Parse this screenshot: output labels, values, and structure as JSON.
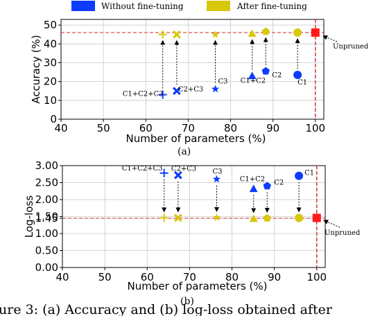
{
  "legend": [
    {
      "label": "Without fine-tuning",
      "color": "#0d3cff"
    },
    {
      "label": "After fine-tuning",
      "color": "#d9c70b"
    }
  ],
  "caption": "ure 3:  (a) Accuracy  and  (b) log-loss  obtained  after",
  "chart_data": [
    {
      "type": "scatter",
      "sublabel": "(a)",
      "xlabel": "Number of parameters (%)",
      "ylabel": "Accuracy (%)",
      "xlim": [
        40,
        102
      ],
      "ylim": [
        0,
        53
      ],
      "xticks": [
        "40",
        "50",
        "60",
        "70",
        "80",
        "90",
        "100"
      ],
      "yticks": [
        "0",
        "10",
        "20",
        "30",
        "40",
        "50"
      ],
      "grid": true,
      "reference_line_y": 46,
      "reference_line_x": 100,
      "unpruned": {
        "label": "Unpruned",
        "x": 100,
        "y": 46,
        "marker": "square"
      },
      "points": [
        {
          "label": "C1+C2+C3",
          "marker": "plus",
          "x": 64,
          "without": 13,
          "after": 45
        },
        {
          "label": "C2+C3",
          "marker": "x",
          "x": 67.3,
          "without": 15,
          "after": 45
        },
        {
          "label": "C3",
          "marker": "star",
          "x": 76.4,
          "without": 16,
          "after": 45
        },
        {
          "label": "C1+C2",
          "marker": "triangle",
          "x": 85.1,
          "without": 23,
          "after": 45.5
        },
        {
          "label": "C2",
          "marker": "pentagon",
          "x": 88.3,
          "without": 25.5,
          "after": 46.5
        },
        {
          "label": "C1",
          "marker": "circle",
          "x": 95.8,
          "without": 23.5,
          "after": 46
        }
      ]
    },
    {
      "type": "scatter",
      "sublabel": "(b)",
      "xlabel": "Number of parameters (%)",
      "ylabel": "Log-loss",
      "xlim": [
        40,
        102
      ],
      "ylim": [
        0,
        3.0
      ],
      "xticks": [
        "40",
        "50",
        "60",
        "70",
        "80",
        "90",
        "100"
      ],
      "yticks": [
        "0.00",
        "0.50",
        "1.00",
        "1.45",
        "1.50",
        "2.00",
        "2.50",
        "3.00"
      ],
      "ytick_values": [
        0,
        0.5,
        1.0,
        1.45,
        1.5,
        2.0,
        2.5,
        3.0
      ],
      "grid": true,
      "reference_line_y": 1.45,
      "reference_line_x": 100,
      "unpruned": {
        "label": "Unpruned",
        "x": 100,
        "y": 1.46,
        "marker": "square"
      },
      "points": [
        {
          "label": "C1+C2+C3",
          "marker": "plus",
          "x": 64,
          "without": 2.78,
          "after": 1.46
        },
        {
          "label": "C2+C3",
          "marker": "x",
          "x": 67.3,
          "without": 2.72,
          "after": 1.46
        },
        {
          "label": "C3",
          "marker": "star",
          "x": 76.4,
          "without": 2.6,
          "after": 1.47
        },
        {
          "label": "C1+C2",
          "marker": "triangle",
          "x": 85.1,
          "without": 2.32,
          "after": 1.44
        },
        {
          "label": "C2",
          "marker": "pentagon",
          "x": 88.3,
          "without": 2.4,
          "after": 1.45
        },
        {
          "label": "C1",
          "marker": "circle",
          "x": 95.8,
          "without": 2.7,
          "after": 1.46
        }
      ]
    }
  ]
}
